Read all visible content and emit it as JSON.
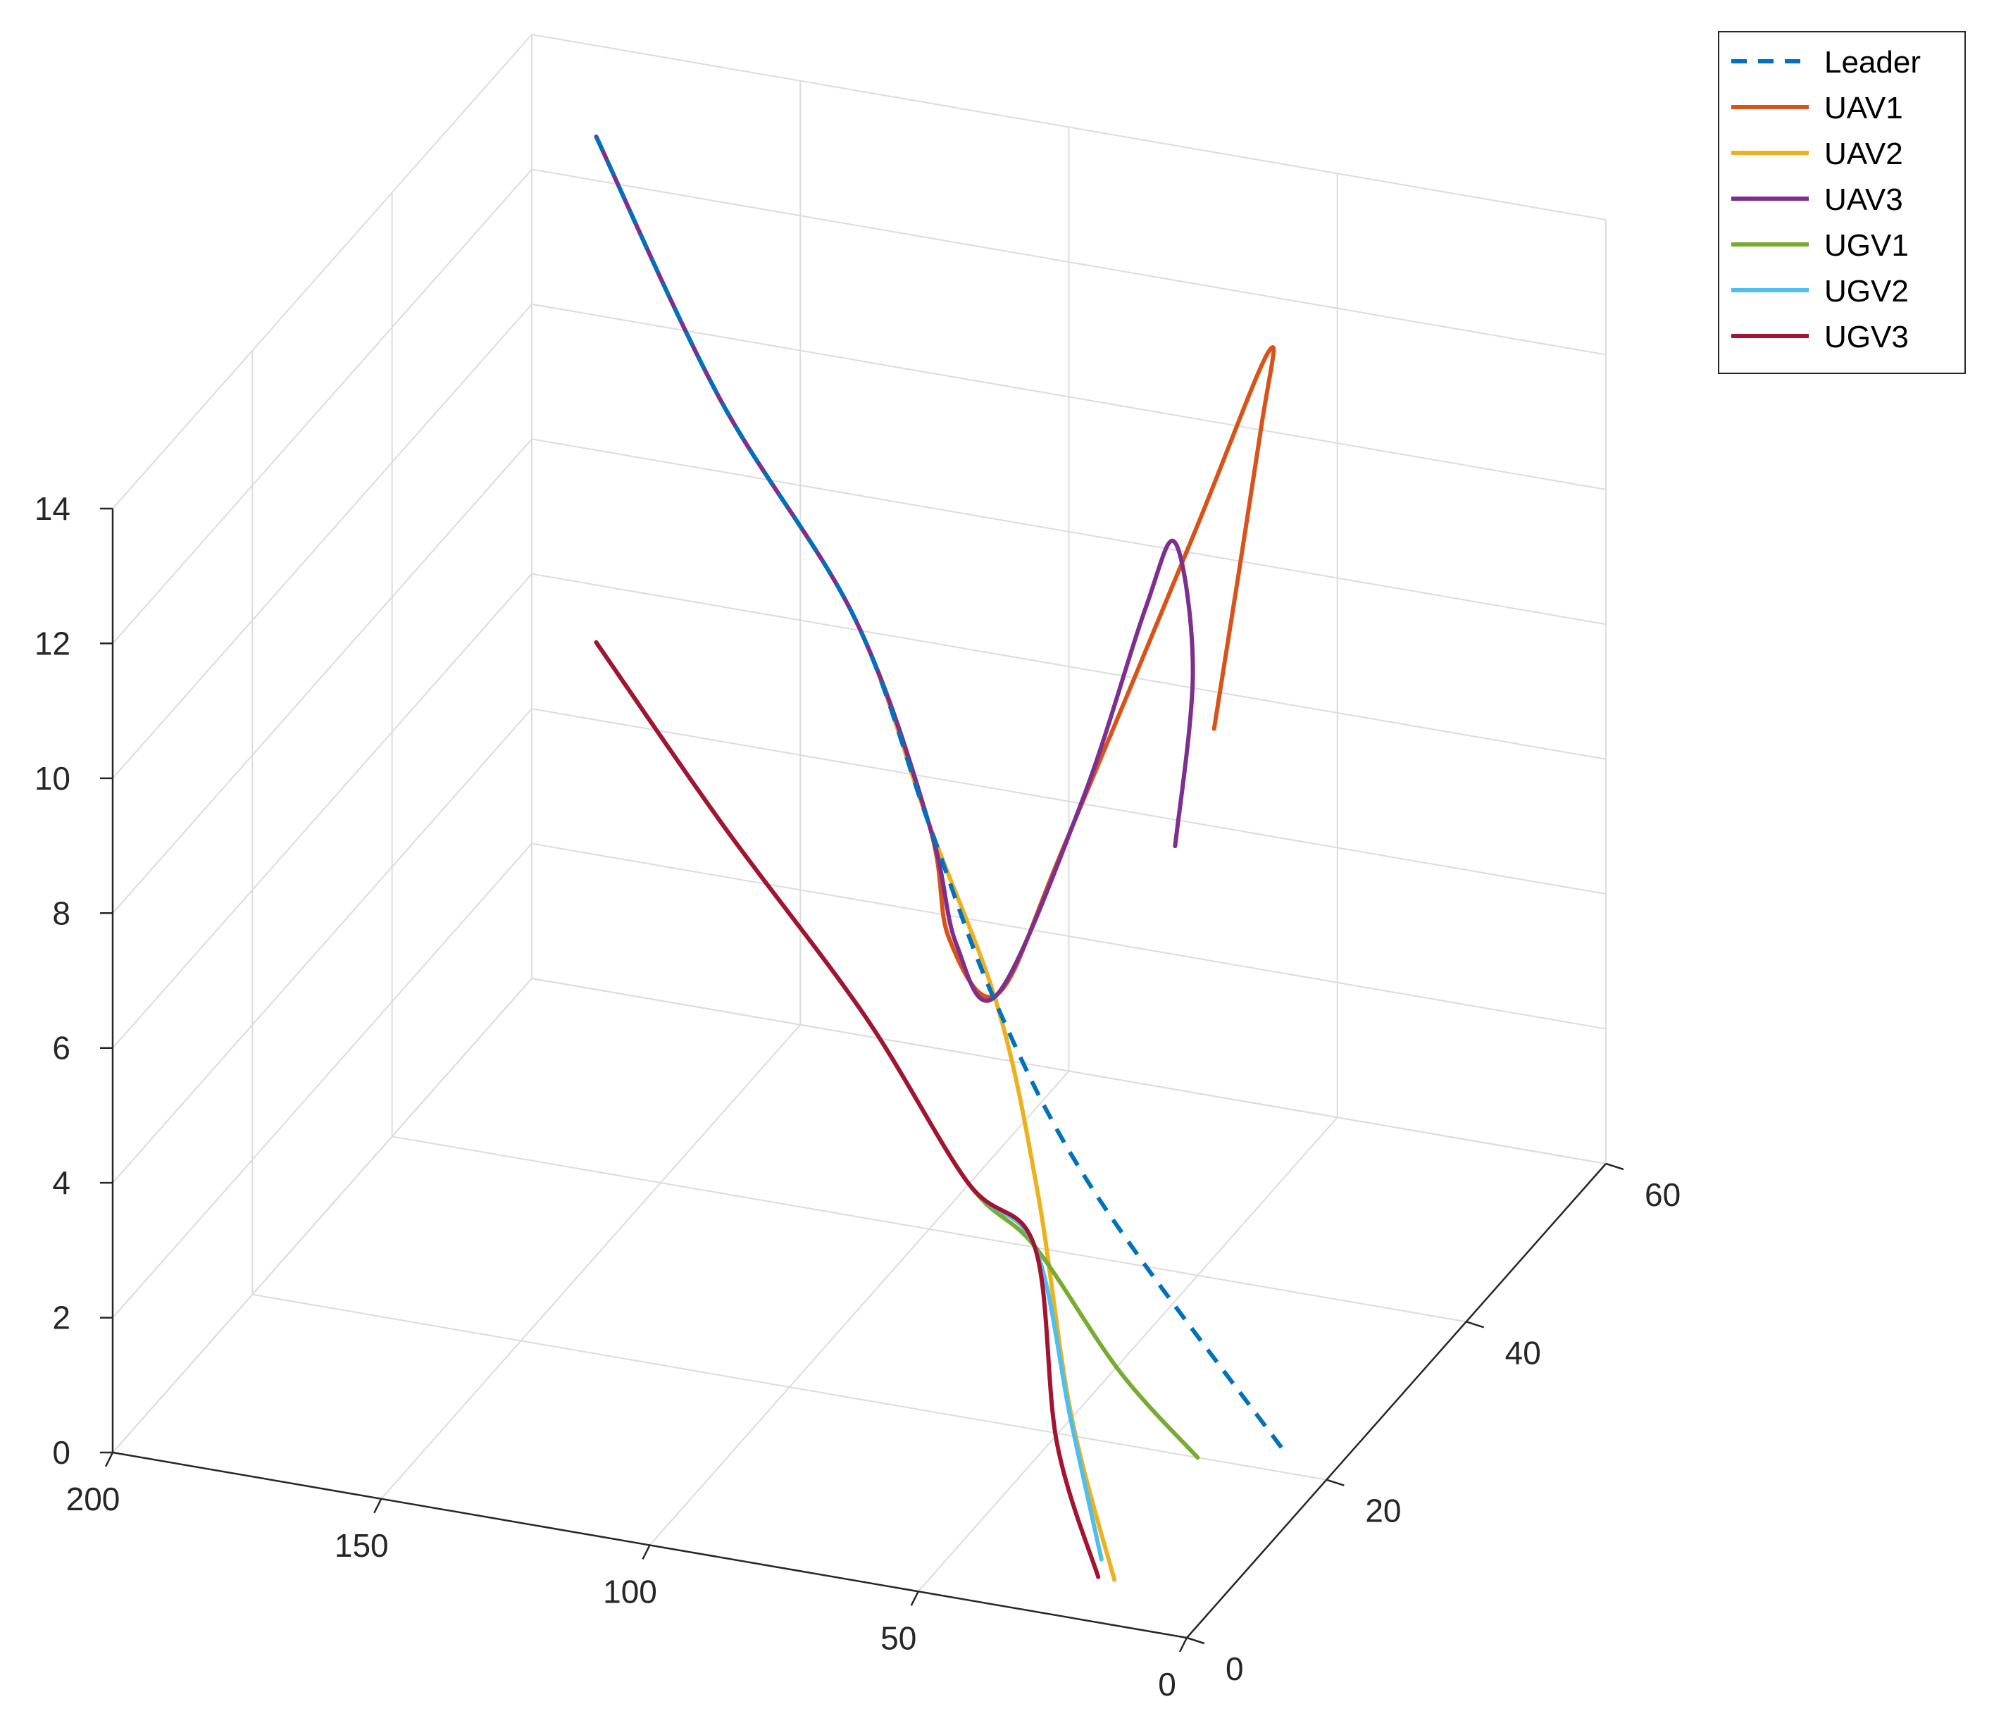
{
  "chart_data": {
    "type": "line",
    "title": "",
    "xlabel": "",
    "ylabel": "",
    "zlabel": "",
    "xlim": [
      0,
      200
    ],
    "ylim": [
      0,
      60
    ],
    "zlim": [
      0,
      14
    ],
    "x_ticks": [
      "0",
      "50",
      "100",
      "150",
      "200"
    ],
    "y_ticks": [
      "0",
      "20",
      "40",
      "60"
    ],
    "z_ticks": [
      "0",
      "2",
      "4",
      "6",
      "8",
      "10",
      "12",
      "14"
    ],
    "grid": true,
    "legend_position": "top-right",
    "series": [
      {
        "name": "Leader",
        "color": "#0072BD",
        "dash": true,
        "points": [
          [
            175,
            50,
            14
          ],
          [
            147,
            46,
            11
          ],
          [
            118,
            43,
            8.5
          ],
          [
            100,
            40,
            6
          ],
          [
            82,
            36,
            4
          ],
          [
            56,
            30,
            2.3
          ],
          [
            10,
            22,
            0
          ]
        ]
      },
      {
        "name": "UAV1",
        "color": "#D95319",
        "dash": false,
        "points": [
          [
            175,
            50,
            14
          ],
          [
            147,
            46,
            11
          ],
          [
            118,
            43,
            8.5
          ],
          [
            100,
            40,
            6
          ],
          [
            95,
            39,
            4.5
          ],
          [
            84,
            37.5,
            4
          ],
          [
            75,
            40,
            6
          ],
          [
            60,
            47,
            10
          ],
          [
            53,
            52.5,
            12.2
          ],
          [
            54,
            52,
            11
          ],
          [
            58,
            48.5,
            7
          ]
        ]
      },
      {
        "name": "UAV2",
        "color": "#EDB120",
        "dash": false,
        "points": [
          [
            175,
            50,
            14
          ],
          [
            147,
            46,
            11
          ],
          [
            118,
            43,
            8.5
          ],
          [
            100,
            40,
            6
          ],
          [
            82,
            36,
            4
          ],
          [
            68,
            31,
            2
          ],
          [
            45,
            18,
            0.6
          ],
          [
            20,
            5,
            0
          ]
        ]
      },
      {
        "name": "UAV3",
        "color": "#7E2F8E",
        "dash": false,
        "points": [
          [
            175,
            50,
            14
          ],
          [
            147,
            46,
            11
          ],
          [
            118,
            43,
            8.5
          ],
          [
            100,
            40,
            6
          ],
          [
            93,
            38.5,
            4.5
          ],
          [
            84,
            37.5,
            4
          ],
          [
            74,
            42,
            6.5
          ],
          [
            65,
            44,
            9.2
          ],
          [
            62,
            46,
            10
          ],
          [
            60,
            47,
            8
          ],
          [
            62,
            46,
            5.5
          ]
        ]
      },
      {
        "name": "UGV1",
        "color": "#77AC30",
        "dash": false,
        "points": [
          [
            175,
            50,
            6.5
          ],
          [
            145,
            45,
            4.8
          ],
          [
            112,
            40,
            3
          ],
          [
            85,
            34,
            1.6
          ],
          [
            70,
            32,
            1.1
          ],
          [
            45,
            25,
            0.4
          ],
          [
            24,
            20,
            0
          ]
        ]
      },
      {
        "name": "UGV2",
        "color": "#4DBEEE",
        "dash": false,
        "points": [
          [
            175,
            50,
            6.5
          ],
          [
            145,
            45,
            4.8
          ],
          [
            112,
            40,
            3
          ],
          [
            85,
            34,
            1.6
          ],
          [
            70,
            32,
            1.1
          ],
          [
            45,
            18,
            0.5
          ],
          [
            25,
            7,
            0
          ]
        ]
      },
      {
        "name": "UGV3",
        "color": "#A2142F",
        "dash": false,
        "points": [
          [
            175,
            50,
            6.5
          ],
          [
            145,
            45,
            4.8
          ],
          [
            112,
            40,
            3
          ],
          [
            85,
            34,
            1.6
          ],
          [
            70,
            32,
            1.1
          ],
          [
            45,
            16,
            0.4
          ],
          [
            23,
            5,
            0
          ]
        ]
      }
    ]
  }
}
